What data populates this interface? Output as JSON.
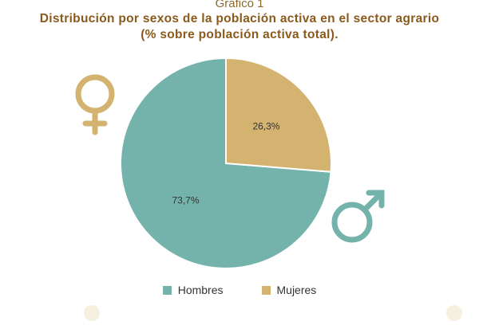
{
  "chart_label": "Gráfico 1",
  "title_line1": "Distribución por sexos de la población activa en el sector agrario",
  "title_line2": "(% sobre población activa total).",
  "colors": {
    "hombres": "#74b3ab",
    "mujeres": "#d3b36f",
    "title": "#8a5a1c"
  },
  "icons": {
    "female": "venus-symbol-icon",
    "male": "mars-symbol-icon"
  },
  "chart_data": {
    "type": "pie",
    "categories": [
      "Hombres",
      "Mujeres"
    ],
    "values": [
      73.7,
      26.3
    ],
    "data_labels": [
      "73,7%",
      "26,3%"
    ],
    "start_angle_deg": 0,
    "direction": "counterclockwise",
    "legend_placement": "bottom"
  },
  "legend": {
    "hombres": "Hombres",
    "mujeres": "Mujeres"
  }
}
